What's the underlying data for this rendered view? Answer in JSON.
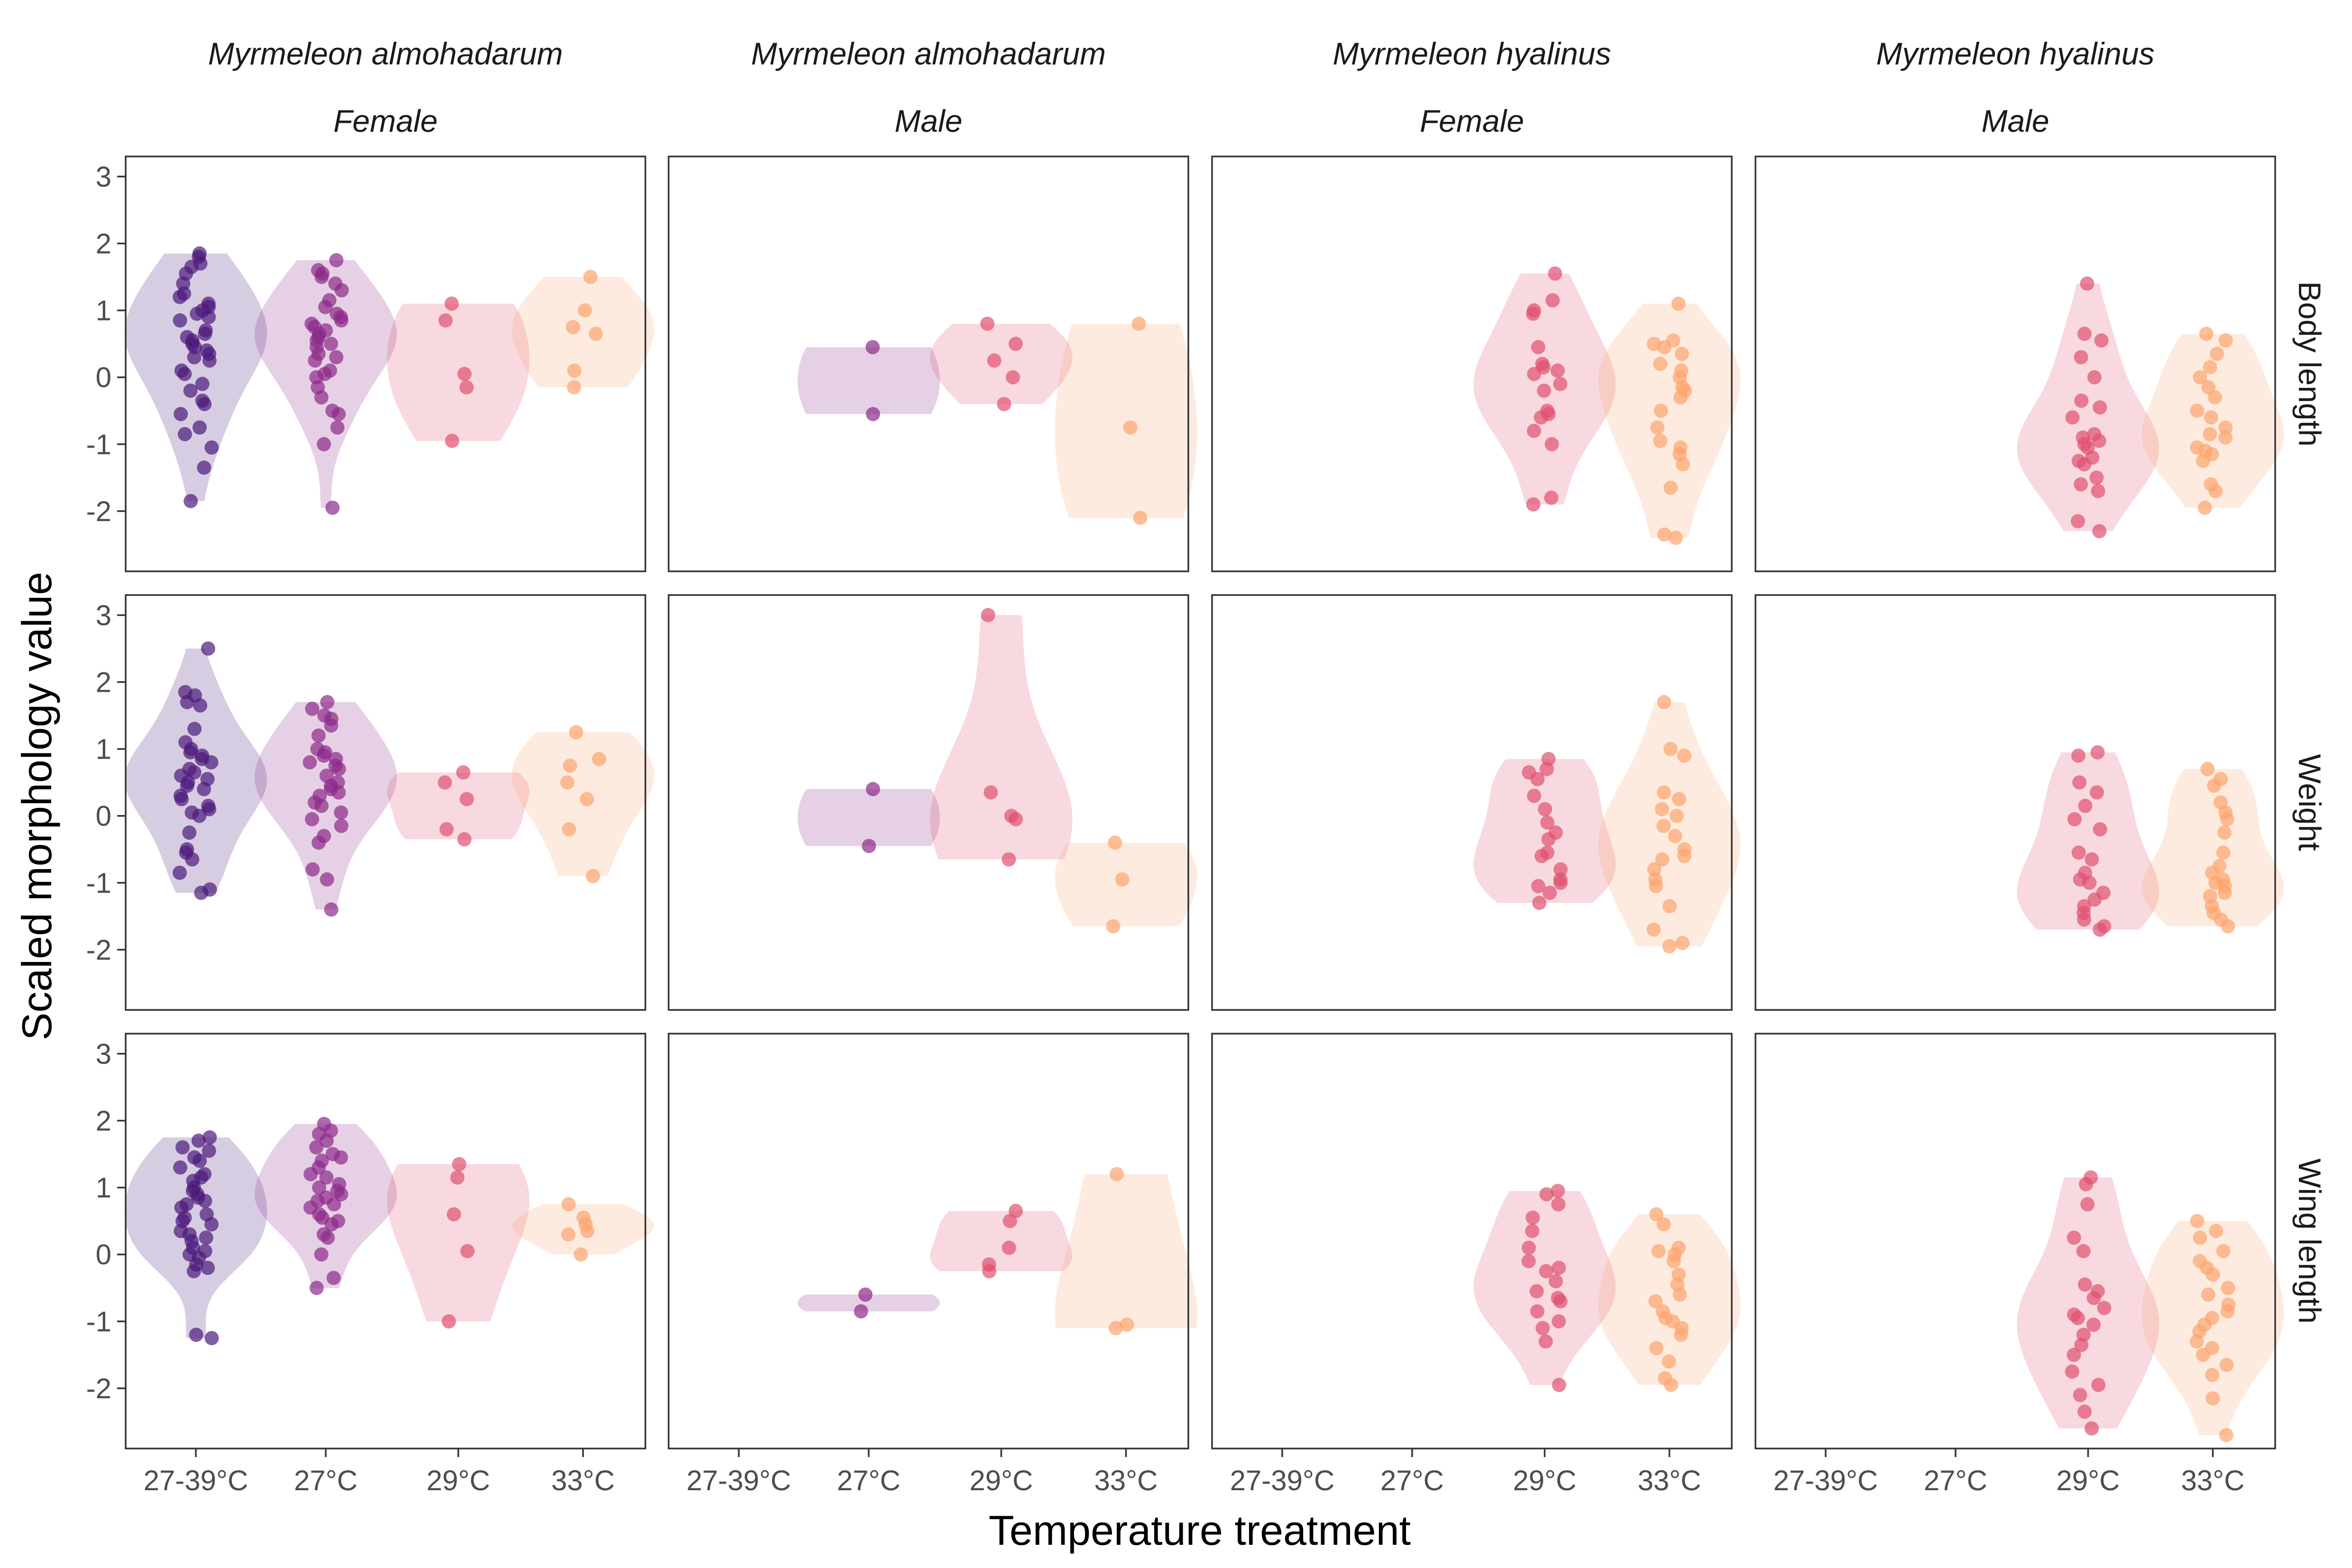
{
  "chart_data": {
    "type": "violin",
    "xlabel": "Temperature treatment",
    "ylabel": "Scaled morphology value",
    "categories": [
      "27-39°C",
      "27°C",
      "29°C",
      "33°C"
    ],
    "ylim": [
      -2.9,
      3.3
    ],
    "yticks": [
      -2,
      -1,
      0,
      1,
      2,
      3
    ],
    "ytick_labels": [
      "-2",
      "-1",
      "0",
      "1",
      "2",
      "3"
    ],
    "grid": false,
    "colors": {
      "27-39°C": "#4b1a7a",
      "27°C": "#8d2a8a",
      "29°C": "#e0506f",
      "33°C": "#fca46c"
    },
    "columns": [
      {
        "species": "Myrmeleon almohadarum",
        "sex": "Female"
      },
      {
        "species": "Myrmeleon almohadarum",
        "sex": "Male"
      },
      {
        "species": "Myrmeleon hyalinus",
        "sex": "Female"
      },
      {
        "species": "Myrmeleon hyalinus",
        "sex": "Male"
      }
    ],
    "rows": [
      "Body length",
      "Weight",
      "Wing length"
    ],
    "panels": [
      [
        {
          "27-39°C": [
            1.85,
            1.8,
            1.7,
            1.65,
            1.55,
            1.4,
            1.25,
            1.2,
            1.1,
            1.05,
            1.0,
            0.95,
            0.9,
            0.85,
            0.7,
            0.65,
            0.6,
            0.55,
            0.5,
            0.45,
            0.4,
            0.35,
            0.3,
            0.25,
            0.1,
            0.05,
            -0.1,
            -0.2,
            -0.35,
            -0.4,
            -0.55,
            -0.75,
            -0.85,
            -1.05,
            -1.35,
            -1.85
          ],
          "27°C": [
            1.75,
            1.6,
            1.55,
            1.5,
            1.4,
            1.3,
            1.15,
            1.05,
            0.95,
            0.9,
            0.85,
            0.8,
            0.75,
            0.7,
            0.65,
            0.6,
            0.55,
            0.5,
            0.45,
            0.35,
            0.3,
            0.25,
            0.1,
            0.05,
            0.0,
            -0.15,
            -0.3,
            -0.5,
            -0.55,
            -0.75,
            -1.0,
            -1.95
          ],
          "29°C": [
            1.1,
            0.85,
            0.05,
            -0.15,
            -0.95
          ],
          "33°C": [
            1.5,
            1.0,
            0.75,
            0.65,
            0.1,
            -0.15
          ]
        },
        {
          "27°C": [
            0.45,
            -0.55
          ],
          "29°C": [
            0.8,
            0.5,
            0.25,
            0.0,
            -0.4
          ],
          "33°C": [
            0.8,
            -0.75,
            -2.1
          ]
        },
        {
          "29°C": [
            1.55,
            1.15,
            1.0,
            0.95,
            0.45,
            0.2,
            0.15,
            0.1,
            0.05,
            -0.1,
            -0.2,
            -0.5,
            -0.55,
            -0.6,
            -0.8,
            -1.0,
            -1.8,
            -1.9
          ],
          "33°C": [
            1.1,
            0.55,
            0.5,
            0.45,
            0.35,
            0.2,
            0.1,
            0.0,
            -0.15,
            -0.2,
            -0.3,
            -0.5,
            -0.75,
            -0.95,
            -1.05,
            -1.15,
            -1.3,
            -1.65,
            -2.35,
            -2.4
          ]
        },
        {
          "29°C": [
            1.4,
            0.65,
            0.55,
            0.3,
            0.0,
            -0.35,
            -0.45,
            -0.6,
            -0.85,
            -0.9,
            -0.95,
            -1.0,
            -1.05,
            -1.2,
            -1.25,
            -1.3,
            -1.5,
            -1.6,
            -1.7,
            -2.15,
            -2.3
          ],
          "33°C": [
            0.65,
            0.55,
            0.35,
            0.15,
            0.0,
            -0.15,
            -0.3,
            -0.5,
            -0.6,
            -0.75,
            -0.85,
            -0.9,
            -1.05,
            -1.1,
            -1.15,
            -1.25,
            -1.6,
            -1.7,
            -1.95
          ]
        }
      ],
      [
        {
          "27-39°C": [
            2.5,
            1.85,
            1.8,
            1.7,
            1.65,
            1.3,
            1.1,
            1.0,
            0.95,
            0.9,
            0.85,
            0.8,
            0.7,
            0.65,
            0.6,
            0.55,
            0.5,
            0.45,
            0.4,
            0.3,
            0.25,
            0.15,
            0.1,
            0.05,
            0.0,
            -0.25,
            -0.5,
            -0.55,
            -0.65,
            -0.85,
            -1.1,
            -1.15
          ],
          "27°C": [
            1.7,
            1.6,
            1.5,
            1.45,
            1.35,
            1.2,
            1.0,
            0.95,
            0.9,
            0.85,
            0.8,
            0.75,
            0.7,
            0.6,
            0.5,
            0.45,
            0.4,
            0.35,
            0.3,
            0.2,
            0.15,
            0.05,
            -0.05,
            -0.15,
            -0.3,
            -0.4,
            -0.8,
            -0.95,
            -1.4
          ],
          "29°C": [
            0.65,
            0.5,
            0.25,
            -0.2,
            -0.35
          ],
          "33°C": [
            1.25,
            0.85,
            0.75,
            0.5,
            0.25,
            -0.2,
            -0.9
          ]
        },
        {
          "27°C": [
            0.4,
            -0.45
          ],
          "29°C": [
            3.0,
            0.35,
            0.0,
            -0.05,
            -0.65
          ],
          "33°C": [
            -0.4,
            -0.95,
            -1.65
          ]
        },
        {
          "29°C": [
            0.85,
            0.7,
            0.65,
            0.55,
            0.3,
            0.1,
            -0.1,
            -0.25,
            -0.35,
            -0.55,
            -0.6,
            -0.8,
            -0.95,
            -1.0,
            -1.05,
            -1.15,
            -1.3
          ],
          "33°C": [
            1.7,
            1.0,
            0.9,
            0.35,
            0.25,
            0.1,
            0.0,
            -0.15,
            -0.3,
            -0.5,
            -0.6,
            -0.65,
            -0.8,
            -0.95,
            -1.05,
            -1.35,
            -1.7,
            -1.9,
            -1.95
          ]
        },
        {
          "29°C": [
            0.95,
            0.9,
            0.5,
            0.35,
            0.15,
            -0.05,
            -0.2,
            -0.55,
            -0.65,
            -0.85,
            -0.95,
            -1.0,
            -1.15,
            -1.25,
            -1.35,
            -1.45,
            -1.55,
            -1.65,
            -1.7
          ],
          "33°C": [
            0.7,
            0.55,
            0.45,
            0.2,
            0.05,
            -0.05,
            -0.25,
            -0.55,
            -0.75,
            -0.85,
            -0.95,
            -1.0,
            -1.05,
            -1.15,
            -1.2,
            -1.35,
            -1.45,
            -1.55,
            -1.65
          ]
        }
      ],
      [
        {
          "27-39°C": [
            1.75,
            1.7,
            1.6,
            1.55,
            1.45,
            1.4,
            1.3,
            1.2,
            1.15,
            1.1,
            1.0,
            0.95,
            0.9,
            0.85,
            0.8,
            0.75,
            0.7,
            0.6,
            0.55,
            0.5,
            0.45,
            0.35,
            0.3,
            0.25,
            0.2,
            0.1,
            0.05,
            0.0,
            -0.05,
            -0.15,
            -0.2,
            -0.25,
            -1.2,
            -1.25
          ],
          "27°C": [
            1.95,
            1.85,
            1.8,
            1.7,
            1.6,
            1.5,
            1.45,
            1.4,
            1.3,
            1.2,
            1.15,
            1.05,
            1.0,
            0.95,
            0.9,
            0.85,
            0.8,
            0.75,
            0.7,
            0.6,
            0.55,
            0.5,
            0.45,
            0.3,
            0.25,
            0.0,
            -0.35,
            -0.5
          ],
          "29°C": [
            1.35,
            1.15,
            0.6,
            0.05,
            -1.0
          ],
          "33°C": [
            0.75,
            0.55,
            0.45,
            0.35,
            0.3,
            0.0
          ]
        },
        {
          "27°C": [
            -0.6,
            -0.85
          ],
          "29°C": [
            0.65,
            0.5,
            0.1,
            -0.15,
            -0.25
          ],
          "33°C": [
            1.2,
            -1.05,
            -1.1
          ]
        },
        {
          "29°C": [
            0.95,
            0.9,
            0.75,
            0.55,
            0.35,
            0.1,
            -0.1,
            -0.2,
            -0.25,
            -0.4,
            -0.55,
            -0.65,
            -0.7,
            -0.85,
            -1.0,
            -1.1,
            -1.3,
            -1.95
          ],
          "33°C": [
            0.6,
            0.45,
            0.1,
            0.05,
            0.0,
            -0.1,
            -0.3,
            -0.45,
            -0.6,
            -0.7,
            -0.85,
            -0.95,
            -1.0,
            -1.1,
            -1.2,
            -1.4,
            -1.6,
            -1.85,
            -1.95
          ]
        },
        {
          "29°C": [
            1.15,
            1.05,
            0.75,
            0.25,
            0.05,
            -0.45,
            -0.55,
            -0.65,
            -0.8,
            -0.9,
            -0.95,
            -1.05,
            -1.2,
            -1.35,
            -1.5,
            -1.75,
            -1.95,
            -2.1,
            -2.35,
            -2.6
          ],
          "33°C": [
            0.5,
            0.35,
            0.25,
            0.05,
            -0.1,
            -0.2,
            -0.3,
            -0.5,
            -0.6,
            -0.75,
            -0.85,
            -0.95,
            -1.05,
            -1.15,
            -1.3,
            -1.4,
            -1.5,
            -1.65,
            -1.8,
            -2.15,
            -2.7
          ]
        }
      ]
    ]
  }
}
